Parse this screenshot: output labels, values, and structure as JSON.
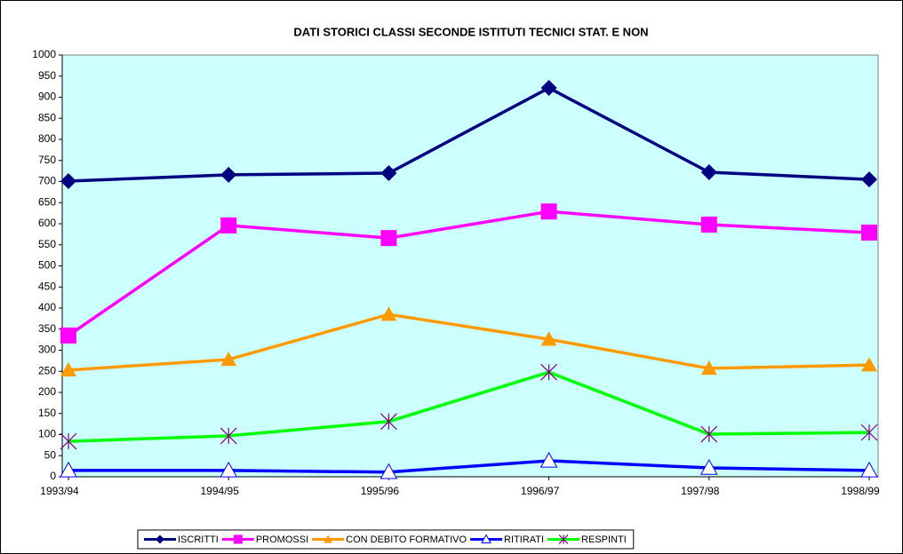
{
  "chart_data": {
    "type": "line",
    "title": "DATI STORICI CLASSI SECONDE ISTITUTI TECNICI STAT. E NON",
    "categories": [
      "1993/94",
      "1994/95",
      "1995/96",
      "1996/97",
      "1997/98",
      "1998/99"
    ],
    "series": [
      {
        "name": "ISCRITTI",
        "color": "#000080",
        "marker": "diamond",
        "marker_color": "#000080",
        "values": [
          701,
          716,
          720,
          922,
          722,
          705
        ]
      },
      {
        "name": "PROMOSSI",
        "color": "#ff00ff",
        "marker": "square",
        "marker_color": "#ff00ff",
        "values": [
          335,
          596,
          566,
          629,
          598,
          579
        ]
      },
      {
        "name": "CON DEBITO FORMATIVO",
        "color": "#ff9900",
        "marker": "triangle",
        "marker_color": "#ff9900",
        "values": [
          253,
          278,
          385,
          326,
          257,
          265
        ]
      },
      {
        "name": "RITIRATI",
        "color": "#0000ff",
        "marker": "open-triangle",
        "marker_color": "#0000ff",
        "values": [
          15,
          15,
          11,
          38,
          21,
          15
        ]
      },
      {
        "name": "RESPINTI",
        "color": "#00ff00",
        "marker": "asterisk",
        "marker_color": "#800080",
        "values": [
          84,
          97,
          131,
          248,
          101,
          105
        ]
      }
    ],
    "ylim": [
      0,
      1000
    ],
    "yticks": [
      0,
      50,
      100,
      150,
      200,
      250,
      300,
      350,
      400,
      450,
      500,
      550,
      600,
      650,
      700,
      750,
      800,
      850,
      900,
      950,
      1000
    ],
    "grid": false,
    "plot_background": "#ccffff",
    "legend": "bottom"
  }
}
